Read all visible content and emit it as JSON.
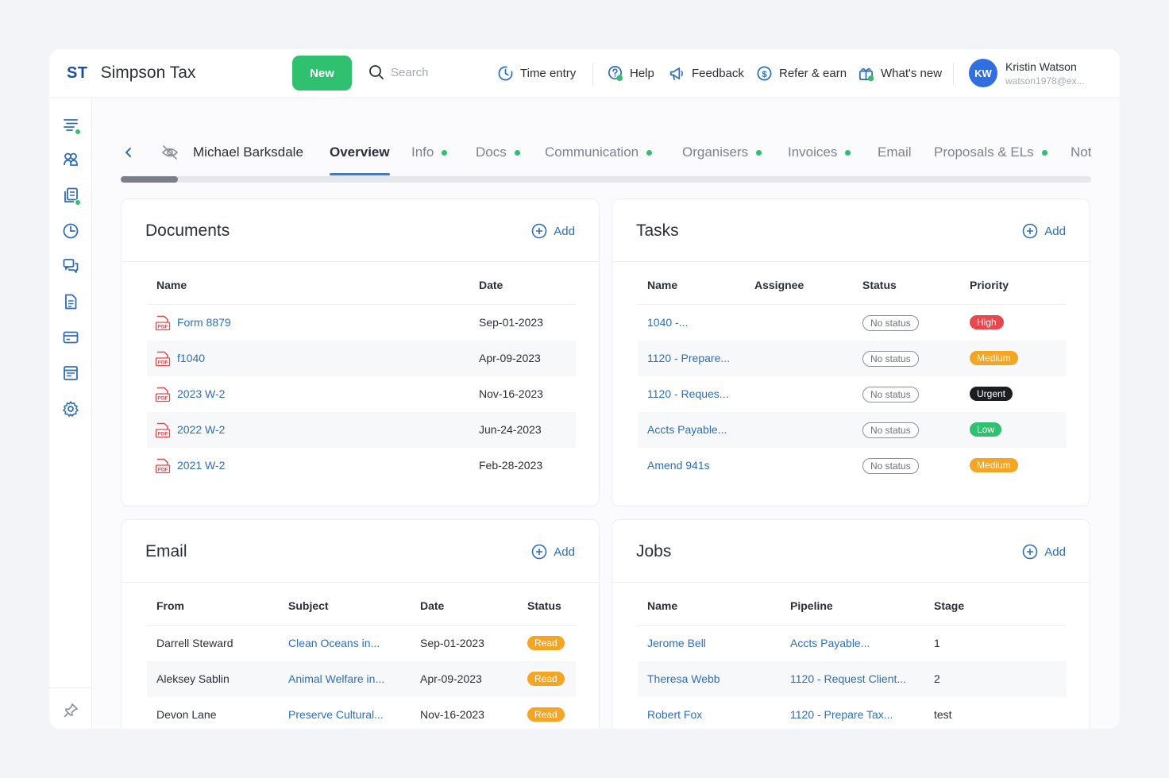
{
  "app": {
    "logo": "ST",
    "name": "Simpson Tax"
  },
  "header": {
    "new_label": "New",
    "search_placeholder": "Search",
    "nav": [
      {
        "label": "Time entry",
        "icon": "clock-icon"
      },
      {
        "label": "Help",
        "icon": "help-icon"
      },
      {
        "label": "Feedback",
        "icon": "megaphone-icon"
      },
      {
        "label": "Refer & earn",
        "icon": "dollar-icon"
      },
      {
        "label": "What's new",
        "icon": "gift-icon"
      }
    ],
    "user": {
      "initials": "KW",
      "name": "Kristin Watson",
      "email": "watson1978@ex..."
    }
  },
  "sidebar": {
    "items": [
      {
        "icon": "list-icon"
      },
      {
        "icon": "contacts-icon"
      },
      {
        "icon": "documents-icon"
      },
      {
        "icon": "clock-icon"
      },
      {
        "icon": "chat-icon"
      },
      {
        "icon": "file-icon"
      },
      {
        "icon": "card-icon"
      },
      {
        "icon": "calendar-icon"
      },
      {
        "icon": "settings-icon"
      }
    ],
    "pin_icon": "pin-icon"
  },
  "tabs": {
    "client_name": "Michael Barksdale",
    "items": [
      {
        "label": "Overview",
        "active": true,
        "dot": false
      },
      {
        "label": "Info",
        "active": false,
        "dot": true
      },
      {
        "label": "Docs",
        "active": false,
        "dot": true
      },
      {
        "label": "Communication",
        "active": false,
        "dot": true
      },
      {
        "label": "Organisers",
        "active": false,
        "dot": true
      },
      {
        "label": "Invoices",
        "active": false,
        "dot": true
      },
      {
        "label": "Email",
        "active": false,
        "dot": false
      },
      {
        "label": "Proposals & ELs",
        "active": false,
        "dot": true
      },
      {
        "label": "Not",
        "active": false,
        "dot": false
      }
    ]
  },
  "documents": {
    "title": "Documents",
    "add_label": "Add",
    "columns": [
      "Name",
      "Date"
    ],
    "rows": [
      {
        "name": "Form 8879",
        "date": "Sep-01-2023"
      },
      {
        "name": "f1040",
        "date": "Apr-09-2023"
      },
      {
        "name": "2023 W-2",
        "date": "Nov-16-2023"
      },
      {
        "name": "2022 W-2",
        "date": "Jun-24-2023"
      },
      {
        "name": "2021 W-2",
        "date": "Feb-28-2023"
      }
    ],
    "pdf_label": "PDF"
  },
  "tasks": {
    "title": "Tasks",
    "add_label": "Add",
    "columns": [
      "Name",
      "Assignee",
      "Status",
      "Priority"
    ],
    "rows": [
      {
        "name": "1040 -...",
        "assignee": "",
        "status": "No status",
        "priority": "High",
        "priority_color": "#e5484d"
      },
      {
        "name": "1120 - Prepare...",
        "assignee": "",
        "status": "No status",
        "priority": "Medium",
        "priority_color": "#f5a524"
      },
      {
        "name": "1120 - Reques...",
        "assignee": "",
        "status": "No status",
        "priority": "Urgent",
        "priority_color": "#1b1d22"
      },
      {
        "name": "Accts Payable...",
        "assignee": "",
        "status": "No status",
        "priority": "Low",
        "priority_color": "#2fc070"
      },
      {
        "name": "Amend 941s",
        "assignee": "",
        "status": "No status",
        "priority": "Medium",
        "priority_color": "#f5a524"
      }
    ]
  },
  "email": {
    "title": "Email",
    "add_label": "Add",
    "columns": [
      "From",
      "Subject",
      "Date",
      "Status"
    ],
    "rows": [
      {
        "from": "Darrell Steward",
        "subject": "Clean Oceans in...",
        "date": "Sep-01-2023",
        "status": "Read"
      },
      {
        "from": "Aleksey Sablin",
        "subject": "Animal Welfare in...",
        "date": "Apr-09-2023",
        "status": "Read"
      },
      {
        "from": "Devon Lane",
        "subject": "Preserve Cultural...",
        "date": "Nov-16-2023",
        "status": "Read"
      }
    ],
    "status_color": "#f5a524"
  },
  "jobs": {
    "title": "Jobs",
    "add_label": "Add",
    "columns": [
      "Name",
      "Pipeline",
      "Stage"
    ],
    "rows": [
      {
        "name": "Jerome Bell",
        "pipeline": "Accts Payable...",
        "stage": "1"
      },
      {
        "name": "Theresa Webb",
        "pipeline": "1120 - Request Client...",
        "stage": "2"
      },
      {
        "name": "Robert Fox",
        "pipeline": "1120 - Prepare Tax...",
        "stage": "test"
      }
    ]
  },
  "colors": {
    "accent": "#2f6db8",
    "brand": "#1f4f9a",
    "success": "#2fc070"
  }
}
